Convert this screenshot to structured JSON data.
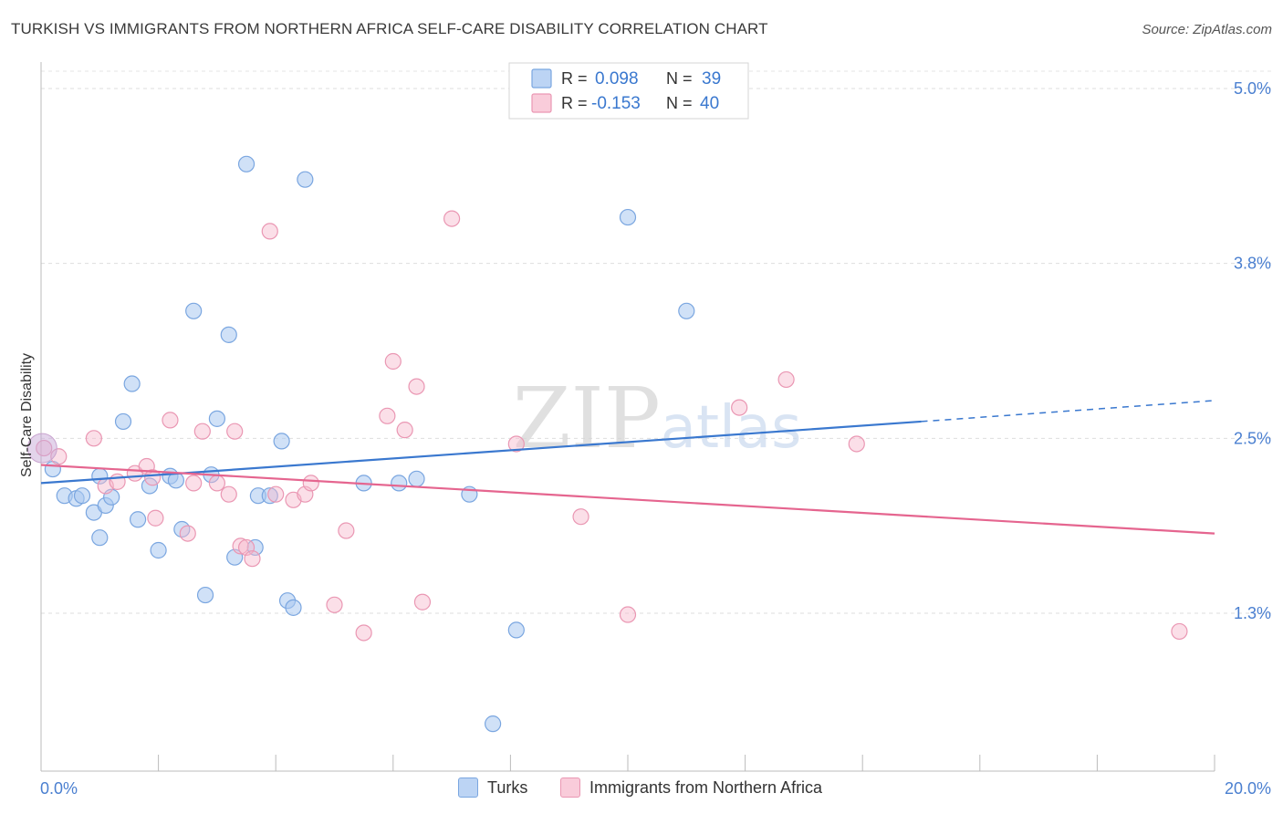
{
  "title": "TURKISH VS IMMIGRANTS FROM NORTHERN AFRICA SELF-CARE DISABILITY CORRELATION CHART",
  "source": "Source: ZipAtlas.com",
  "watermark": "ZIPatlas",
  "colors": {
    "blue": "#3a78cf",
    "blue_fill": "#a9c8f0",
    "pink": "#e5658f",
    "pink_fill": "#f6b9cc",
    "tick_text": "#4a7fd0",
    "grid": "#d9d9d9"
  },
  "legend": {
    "series1": {
      "r_label": "R = ",
      "r_value": "0.098",
      "n_label": "N = ",
      "n_value": "39"
    },
    "series2": {
      "r_label": "R = ",
      "r_value": "-0.153",
      "n_label": "N = ",
      "n_value": "40"
    }
  },
  "chart_data": {
    "type": "scatter",
    "title": "TURKISH VS IMMIGRANTS FROM NORTHERN AFRICA SELF-CARE DISABILITY CORRELATION CHART",
    "xlabel": "",
    "ylabel": "Self-Care Disability",
    "xlim": [
      0,
      20
    ],
    "ylim": [
      0,
      5.2
    ],
    "x_tick_labels": [
      "0.0%",
      "20.0%"
    ],
    "y_ticks": [
      1.25,
      2.5,
      3.75,
      5.0
    ],
    "y_tick_labels": [
      "1.3%",
      "2.5%",
      "3.8%",
      "5.0%"
    ],
    "grid": "horizontal dashed",
    "legend_position": "top-center and bottom",
    "series": [
      {
        "name": "Turks",
        "color": "#3a78cf",
        "trend": {
          "x": [
            0,
            15
          ],
          "y": [
            2.18,
            2.62
          ],
          "dashed_to": [
            20,
            2.77
          ]
        },
        "points": [
          [
            0.2,
            2.28
          ],
          [
            0.4,
            2.09
          ],
          [
            0.6,
            2.07
          ],
          [
            0.7,
            2.09
          ],
          [
            0.9,
            1.97
          ],
          [
            1.0,
            1.79
          ],
          [
            1.0,
            2.23
          ],
          [
            1.1,
            2.02
          ],
          [
            1.2,
            2.08
          ],
          [
            1.4,
            2.62
          ],
          [
            1.55,
            2.89
          ],
          [
            1.65,
            1.92
          ],
          [
            1.85,
            2.16
          ],
          [
            2.0,
            1.7
          ],
          [
            2.2,
            2.23
          ],
          [
            2.3,
            2.2
          ],
          [
            2.4,
            1.85
          ],
          [
            2.6,
            3.41
          ],
          [
            2.8,
            1.38
          ],
          [
            2.9,
            2.24
          ],
          [
            3.0,
            2.64
          ],
          [
            3.2,
            3.24
          ],
          [
            3.3,
            1.65
          ],
          [
            3.5,
            4.46
          ],
          [
            3.65,
            1.72
          ],
          [
            3.7,
            2.09
          ],
          [
            3.9,
            2.09
          ],
          [
            4.1,
            2.48
          ],
          [
            4.2,
            1.34
          ],
          [
            4.3,
            1.29
          ],
          [
            4.5,
            4.35
          ],
          [
            5.5,
            2.18
          ],
          [
            6.1,
            2.18
          ],
          [
            6.4,
            2.21
          ],
          [
            7.3,
            2.1
          ],
          [
            7.7,
            0.46
          ],
          [
            8.1,
            1.13
          ],
          [
            10.0,
            4.08
          ],
          [
            11.0,
            3.41
          ]
        ]
      },
      {
        "name": "Immigrants from Northern Africa",
        "color": "#e5658f",
        "trend": {
          "x": [
            0,
            20
          ],
          "y": [
            2.31,
            1.82
          ]
        },
        "points": [
          [
            0.05,
            2.43
          ],
          [
            0.3,
            2.37
          ],
          [
            0.9,
            2.5
          ],
          [
            1.1,
            2.16
          ],
          [
            1.3,
            2.19
          ],
          [
            1.6,
            2.25
          ],
          [
            1.8,
            2.3
          ],
          [
            1.9,
            2.22
          ],
          [
            1.95,
            1.93
          ],
          [
            2.2,
            2.63
          ],
          [
            2.5,
            1.82
          ],
          [
            2.6,
            2.18
          ],
          [
            2.75,
            2.55
          ],
          [
            3.0,
            2.18
          ],
          [
            3.2,
            2.1
          ],
          [
            3.3,
            2.55
          ],
          [
            3.4,
            1.73
          ],
          [
            3.5,
            1.72
          ],
          [
            3.6,
            1.64
          ],
          [
            3.9,
            3.98
          ],
          [
            4.0,
            2.1
          ],
          [
            4.3,
            2.06
          ],
          [
            4.5,
            2.1
          ],
          [
            4.6,
            2.18
          ],
          [
            5.0,
            1.31
          ],
          [
            5.2,
            1.84
          ],
          [
            5.5,
            1.11
          ],
          [
            5.9,
            2.66
          ],
          [
            6.0,
            3.05
          ],
          [
            6.2,
            2.56
          ],
          [
            6.4,
            2.87
          ],
          [
            6.5,
            1.33
          ],
          [
            7.0,
            4.07
          ],
          [
            8.1,
            2.46
          ],
          [
            9.2,
            1.94
          ],
          [
            10.0,
            1.24
          ],
          [
            11.9,
            2.72
          ],
          [
            12.7,
            2.92
          ],
          [
            13.9,
            2.46
          ],
          [
            19.4,
            1.12
          ]
        ]
      }
    ]
  },
  "bottom_legend": {
    "item1": "Turks",
    "item2": "Immigrants from Northern Africa"
  },
  "ylabel": "Self-Care Disability"
}
